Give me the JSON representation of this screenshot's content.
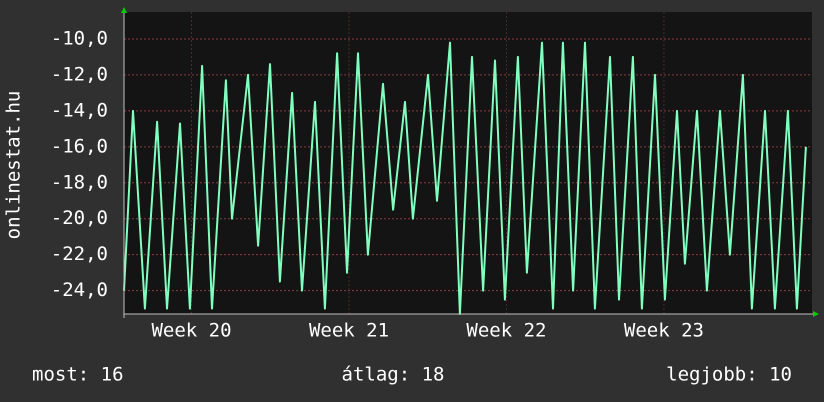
{
  "chart_data": {
    "type": "line",
    "ylabel": "onlinestat.hu",
    "x": [
      0,
      0.4,
      0.93,
      1.47,
      1.91,
      2.49,
      2.93,
      3.47,
      3.91,
      4.53,
      4.8,
      5.51,
      5.96,
      6.49,
      6.93,
      7.47,
      7.91,
      8.49,
      8.93,
      9.47,
      9.91,
      10.4,
      10.84,
      11.51,
      11.96,
      12.49,
      12.84,
      13.51,
      13.91,
      14.49,
      14.93,
      15.47,
      15.96,
      16.49,
      16.93,
      17.51,
      17.91,
      18.58,
      19.07,
      19.51,
      19.96,
      20.49,
      20.93,
      21.6,
      22,
      22.62,
      23.02,
      23.6,
      24.04,
      24.58,
      24.93,
      25.47,
      25.91,
      26.49,
      26.93,
      27.51,
      27.91,
      28.49,
      28.93,
      29.51,
      29.91,
      30.31
    ],
    "series": [
      {
        "color": "#80ffbf",
        "values": [
          -24,
          -14,
          -25,
          -14.6,
          -25,
          -14.7,
          -25,
          -11.5,
          -25,
          -12.3,
          -20,
          -12,
          -21.5,
          -11.4,
          -23.5,
          -13,
          -24,
          -13.5,
          -25,
          -10.8,
          -23,
          -10.8,
          -22,
          -12.5,
          -19.5,
          -13.5,
          -20,
          -12,
          -19,
          -10.2,
          -25.3,
          -11,
          -24,
          -11.2,
          -24.5,
          -11,
          -23,
          -10.2,
          -25,
          -10.2,
          -24,
          -10.2,
          -25,
          -11,
          -24.5,
          -11,
          -25,
          -12,
          -24.5,
          -14,
          -22.5,
          -14,
          -24,
          -14,
          -22,
          -12,
          -25,
          -14,
          -25,
          -14,
          -25,
          -16
        ]
      }
    ],
    "xlim": [
      0,
      30.58
    ],
    "ylim": [
      -25.3,
      -8.5
    ],
    "xticks": [
      {
        "value": 3,
        "label": "Week 20"
      },
      {
        "value": 10,
        "label": "Week 21"
      },
      {
        "value": 17,
        "label": "Week 22"
      },
      {
        "value": 24,
        "label": "Week 23"
      }
    ],
    "yticks": [
      {
        "value": -24,
        "label": "-24,0"
      },
      {
        "value": -22,
        "label": "-22,0"
      },
      {
        "value": -20,
        "label": "-20,0"
      },
      {
        "value": -18,
        "label": "-18,0"
      },
      {
        "value": -16,
        "label": "-16,0"
      },
      {
        "value": -14,
        "label": "-14,0"
      },
      {
        "value": -12,
        "label": "-12,0"
      },
      {
        "value": -10,
        "label": "-10,0"
      }
    ],
    "grid": true,
    "footer": [
      "most: 16",
      "átlag: 18",
      "legjobb: 10"
    ]
  }
}
